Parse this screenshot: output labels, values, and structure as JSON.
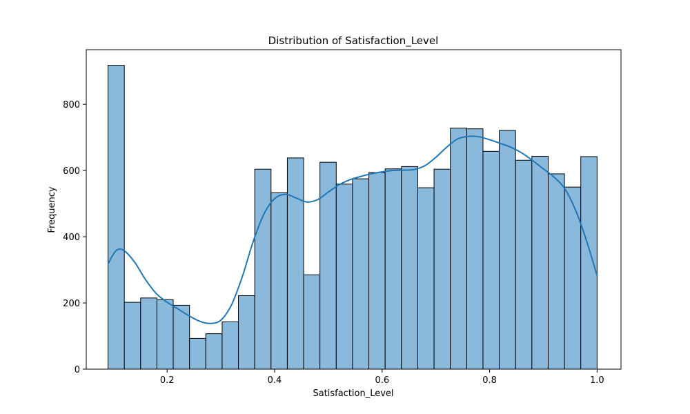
{
  "chart_data": {
    "type": "bar",
    "title": "Distribution of Satisfaction_Level",
    "xlabel": "Satisfaction_Level",
    "ylabel": "Frequency",
    "xlim": [
      0.0495,
      1.0445
    ],
    "ylim": [
      0,
      965
    ],
    "xticks": [
      0.2,
      0.4,
      0.6,
      0.8,
      1.0
    ],
    "xtick_labels": [
      "0.2",
      "0.4",
      "0.6",
      "0.8",
      "1.0"
    ],
    "yticks": [
      0,
      200,
      400,
      600,
      800
    ],
    "ytick_labels": [
      "0",
      "200",
      "400",
      "600",
      "800"
    ],
    "grid": false,
    "bins": {
      "start": 0.09,
      "end": 1.0,
      "counts": [
        918,
        202,
        215,
        210,
        193,
        93,
        107,
        143,
        222,
        604,
        533,
        638,
        285,
        625,
        559,
        575,
        594,
        605,
        612,
        548,
        604,
        728,
        726,
        658,
        721,
        631,
        643,
        590,
        550,
        642
      ]
    },
    "kde": {
      "x": [
        0.09,
        0.105,
        0.12,
        0.14,
        0.16,
        0.18,
        0.2,
        0.22,
        0.24,
        0.26,
        0.28,
        0.3,
        0.32,
        0.34,
        0.36,
        0.38,
        0.4,
        0.42,
        0.44,
        0.46,
        0.48,
        0.5,
        0.52,
        0.54,
        0.56,
        0.58,
        0.6,
        0.62,
        0.64,
        0.66,
        0.68,
        0.7,
        0.72,
        0.74,
        0.76,
        0.78,
        0.8,
        0.82,
        0.84,
        0.86,
        0.88,
        0.9,
        0.92,
        0.94,
        0.96,
        0.98,
        1.0
      ],
      "y": [
        318,
        358,
        358,
        322,
        270,
        228,
        202,
        182,
        162,
        145,
        138,
        148,
        195,
        280,
        385,
        468,
        515,
        528,
        517,
        505,
        512,
        535,
        557,
        572,
        582,
        590,
        596,
        600,
        601,
        603,
        615,
        640,
        670,
        695,
        703,
        702,
        693,
        682,
        670,
        653,
        630,
        605,
        580,
        545,
        480,
        390,
        282
      ]
    },
    "colors": {
      "bar_fill": "#8ab9db",
      "bar_edge": "#000000",
      "kde_line": "#1f77b4",
      "axes": "#000000"
    }
  }
}
